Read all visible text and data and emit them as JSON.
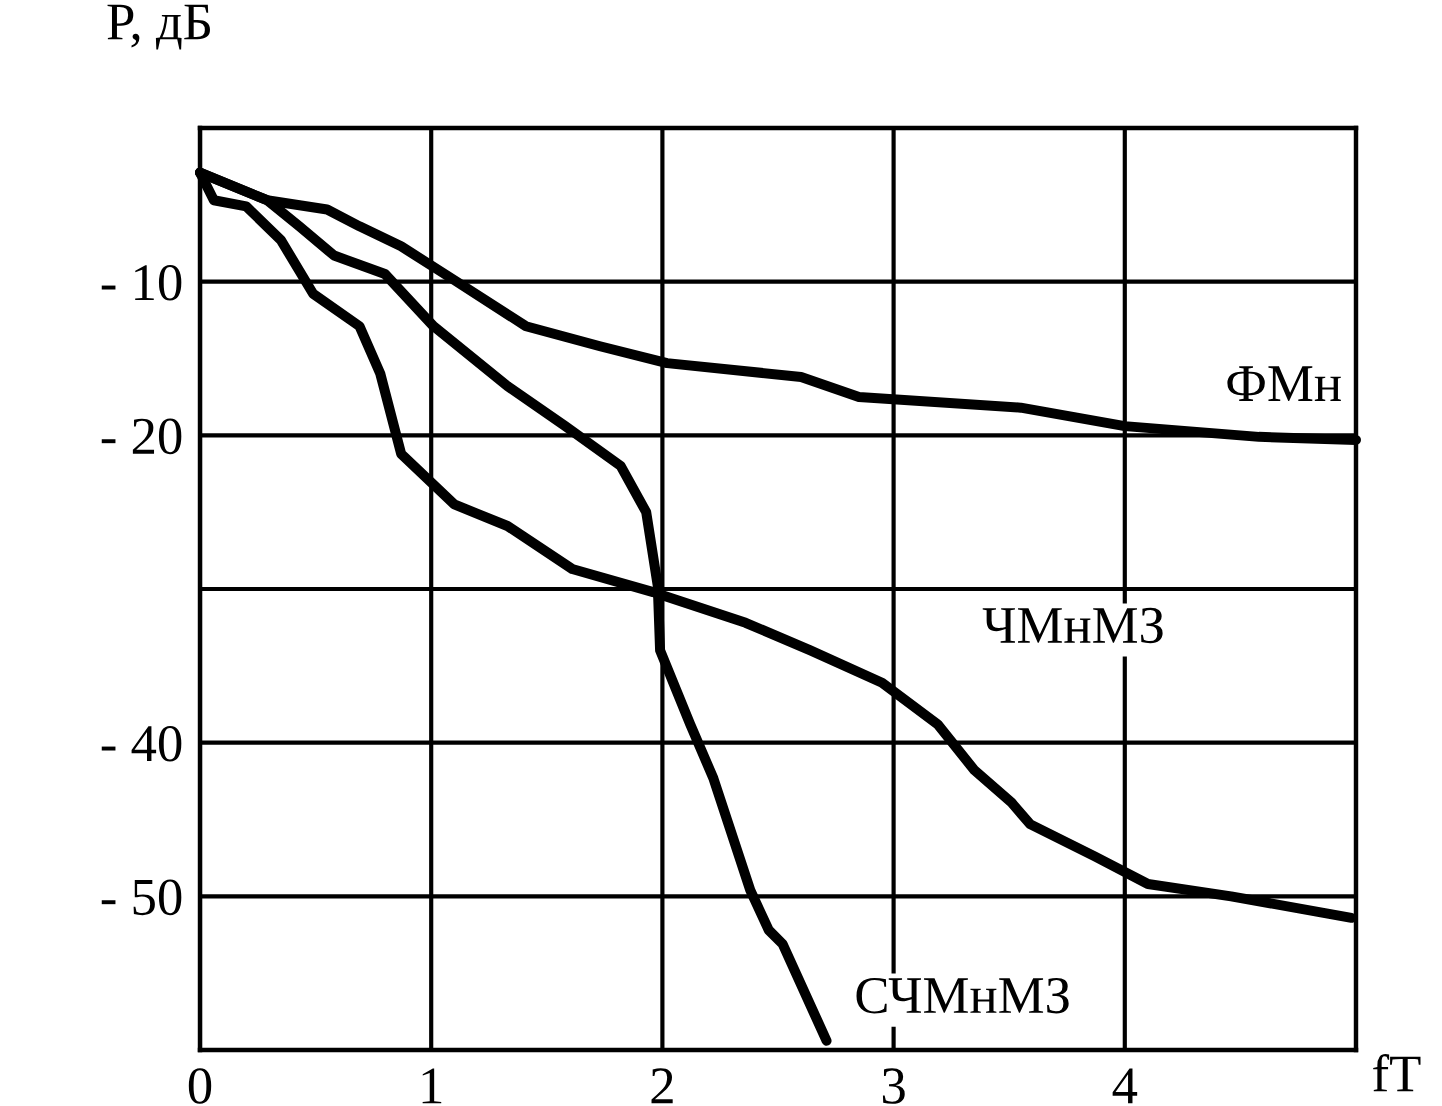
{
  "chart_data": {
    "type": "line",
    "xlabel": "fT",
    "ylabel": "P, дБ",
    "xlim": [
      0,
      5
    ],
    "ylim": [
      -60,
      0
    ],
    "xticks": [
      0,
      1,
      2,
      3,
      4
    ],
    "yticks": [
      {
        "value": -10,
        "label": "- 10"
      },
      {
        "value": -20,
        "label": "- 20"
      },
      {
        "value": -30,
        "label": null
      },
      {
        "value": -40,
        "label": "- 40"
      },
      {
        "value": -50,
        "label": "- 50"
      }
    ],
    "grid": true,
    "legend": false,
    "marker": "none",
    "line_style": "solid",
    "series": [
      {
        "name": "ФМн",
        "color": "#000000",
        "x": [
          0,
          0.29,
          0.55,
          0.69,
          0.87,
          1.1,
          1.41,
          1.73,
          2.02,
          2.6,
          2.85,
          3.55,
          4.0,
          4.58,
          5.0
        ],
        "values": [
          -2.9,
          -4.7,
          -5.3,
          -6.4,
          -7.7,
          -9.9,
          -12.9,
          -14.2,
          -15.3,
          -16.2,
          -17.5,
          -18.2,
          -19.4,
          -20.1,
          -20.3
        ]
      },
      {
        "name": "ЧМнМЗ",
        "color": "#000000",
        "x": [
          0,
          0.06,
          0.2,
          0.35,
          0.49,
          0.69,
          0.78,
          0.87,
          1.1,
          1.33,
          1.61,
          1.96,
          2.0,
          2.36,
          2.64,
          2.95,
          3.19,
          3.35,
          3.51,
          3.59,
          3.87,
          4.1,
          4.46,
          4.98
        ],
        "values": [
          -2.9,
          -4.7,
          -5.1,
          -7.3,
          -10.8,
          -12.9,
          -16,
          -21.2,
          -24.5,
          -25.9,
          -28.7,
          -30.2,
          -30.4,
          -32.2,
          -34,
          -36.1,
          -38.8,
          -41.8,
          -43.9,
          -45.3,
          -47.4,
          -49.2,
          -50,
          -51.4
        ]
      },
      {
        "name": "СЧМнМЗ",
        "color": "#000000",
        "x": [
          0,
          0.29,
          0.43,
          0.58,
          0.8,
          1.01,
          1.33,
          1.58,
          1.82,
          1.93,
          1.98,
          1.99,
          2.12,
          2.22,
          2.38,
          2.46,
          2.52,
          2.71
        ],
        "values": [
          -2.9,
          -4.7,
          -6.4,
          -8.3,
          -9.5,
          -12.9,
          -16.8,
          -19.4,
          -22,
          -25,
          -29.8,
          -34,
          -38.8,
          -42.3,
          -49.6,
          -52.2,
          -53.1,
          -59.4
        ]
      }
    ]
  }
}
